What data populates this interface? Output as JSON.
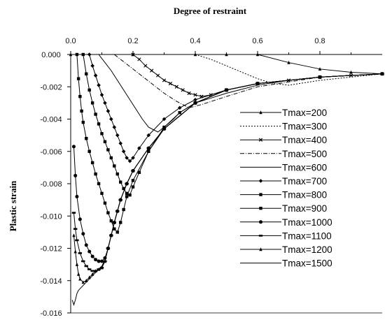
{
  "chart_data": {
    "type": "line",
    "title": "Degree of restraint",
    "xlabel": "Degree of restraint",
    "ylabel": "Plastic strain",
    "xlim": [
      0,
      1.0
    ],
    "ylim": [
      -0.016,
      0.0
    ],
    "x_axis_position": "top",
    "x_ticks": [
      "0.0",
      "0.2",
      "0.4",
      "0.6",
      "0.8"
    ],
    "y_ticks": [
      "0.000",
      "-0.002",
      "-0.004",
      "-0.006",
      "-0.008",
      "-0.010",
      "-0.012",
      "-0.014",
      "-0.016"
    ],
    "legend_position": "right",
    "grid": false,
    "series": [
      {
        "name": "Tmax=200",
        "marker": "tri",
        "dash": "",
        "x": [
          0.0,
          0.2,
          0.4,
          0.5,
          0.6,
          0.7,
          0.8,
          0.9,
          1.0
        ],
        "y": [
          0.0,
          0.0,
          0.0,
          0.0,
          0.0,
          -0.0005,
          -0.0009,
          -0.0011,
          -0.0012
        ]
      },
      {
        "name": "Tmax=300",
        "marker": "none",
        "dash": "2,2",
        "x": [
          0.4,
          0.45,
          0.5,
          0.55,
          0.6,
          0.65,
          0.7,
          0.8,
          0.9,
          1.0
        ],
        "y": [
          0.0,
          -0.0003,
          -0.0007,
          -0.0011,
          -0.0015,
          -0.0018,
          -0.0019,
          -0.0016,
          -0.0014,
          -0.0012
        ]
      },
      {
        "name": "Tmax=400",
        "marker": "x",
        "dash": "",
        "x": [
          0.2,
          0.22,
          0.24,
          0.26,
          0.28,
          0.3,
          0.32,
          0.34,
          0.36,
          0.38,
          0.4,
          0.42,
          0.45,
          0.5,
          0.6,
          0.7,
          0.8,
          0.9,
          1.0
        ],
        "y": [
          0.0,
          -0.0003,
          -0.0007,
          -0.001,
          -0.0013,
          -0.0016,
          -0.0018,
          -0.002,
          -0.0022,
          -0.0024,
          -0.0025,
          -0.0026,
          -0.0025,
          -0.0022,
          -0.0018,
          -0.0016,
          -0.0014,
          -0.0013,
          -0.0012
        ]
      },
      {
        "name": "Tmax=500",
        "marker": "none",
        "dash": "6,2,1,2",
        "x": [
          0.14,
          0.18,
          0.22,
          0.26,
          0.3,
          0.34,
          0.38,
          0.42,
          0.5,
          0.6,
          0.7,
          0.8,
          0.9,
          1.0
        ],
        "y": [
          0.0,
          -0.0006,
          -0.0012,
          -0.0018,
          -0.0024,
          -0.0029,
          -0.0033,
          -0.0031,
          -0.0026,
          -0.002,
          -0.0017,
          -0.0014,
          -0.0013,
          -0.0012
        ]
      },
      {
        "name": "Tmax=600",
        "marker": "none",
        "dash": "",
        "x": [
          0.09,
          0.11,
          0.13,
          0.15,
          0.17,
          0.19,
          0.21,
          0.23,
          0.25,
          0.28,
          0.3,
          0.33,
          0.35,
          0.4,
          0.45,
          0.5,
          0.6,
          0.7,
          0.8,
          0.9,
          1.0
        ],
        "y": [
          0.0,
          -0.0005,
          -0.001,
          -0.0016,
          -0.0022,
          -0.0028,
          -0.0034,
          -0.004,
          -0.0045,
          -0.0048,
          -0.0045,
          -0.004,
          -0.0036,
          -0.003,
          -0.0027,
          -0.0024,
          -0.0019,
          -0.0016,
          -0.0014,
          -0.0013,
          -0.0012
        ]
      },
      {
        "name": "Tmax=700",
        "marker": "diamond",
        "dash": "",
        "x": [
          0.06,
          0.07,
          0.08,
          0.09,
          0.1,
          0.11,
          0.12,
          0.13,
          0.14,
          0.15,
          0.16,
          0.17,
          0.18,
          0.19,
          0.2,
          0.22,
          0.25,
          0.3,
          0.35,
          0.4,
          0.5,
          0.6,
          0.8,
          1.0
        ],
        "y": [
          0.0,
          -0.0007,
          -0.0013,
          -0.0019,
          -0.0025,
          -0.003,
          -0.0035,
          -0.004,
          -0.0045,
          -0.005,
          -0.0055,
          -0.006,
          -0.0064,
          -0.0066,
          -0.0064,
          -0.0058,
          -0.005,
          -0.004,
          -0.0033,
          -0.0028,
          -0.0022,
          -0.0018,
          -0.0014,
          -0.0012
        ]
      },
      {
        "name": "Tmax=800",
        "marker": "square",
        "dash": "",
        "x": [
          0.04,
          0.05,
          0.06,
          0.07,
          0.08,
          0.09,
          0.1,
          0.11,
          0.12,
          0.13,
          0.14,
          0.15,
          0.16,
          0.17,
          0.18,
          0.19,
          0.2,
          0.22,
          0.25,
          0.3,
          0.35,
          0.4,
          0.5,
          0.6,
          0.8,
          1.0
        ],
        "y": [
          0.0,
          -0.0012,
          -0.0022,
          -0.003,
          -0.0037,
          -0.0043,
          -0.0049,
          -0.0054,
          -0.0059,
          -0.0064,
          -0.0069,
          -0.0074,
          -0.0079,
          -0.0083,
          -0.0086,
          -0.0087,
          -0.0082,
          -0.0073,
          -0.006,
          -0.0045,
          -0.0036,
          -0.003,
          -0.0022,
          -0.0018,
          -0.0014,
          -0.0012
        ]
      },
      {
        "name": "Tmax=900",
        "marker": "square",
        "dash": "",
        "x": [
          0.02,
          0.025,
          0.03,
          0.035,
          0.04,
          0.05,
          0.06,
          0.07,
          0.08,
          0.09,
          0.1,
          0.11,
          0.12,
          0.13,
          0.14,
          0.15,
          0.16,
          0.17,
          0.18,
          0.2,
          0.25,
          0.3,
          0.4,
          0.5,
          0.6,
          0.8,
          1.0
        ],
        "y": [
          0.0,
          -0.0015,
          -0.0026,
          -0.0035,
          -0.0042,
          -0.0052,
          -0.006,
          -0.0067,
          -0.0074,
          -0.008,
          -0.0086,
          -0.0092,
          -0.0098,
          -0.0103,
          -0.0108,
          -0.011,
          -0.0104,
          -0.0096,
          -0.0088,
          -0.0078,
          -0.006,
          -0.0046,
          -0.003,
          -0.0022,
          -0.0018,
          -0.0014,
          -0.0012
        ]
      },
      {
        "name": "Tmax=1000",
        "marker": "dot",
        "dash": "",
        "x": [
          0.01,
          0.015,
          0.02,
          0.03,
          0.04,
          0.05,
          0.06,
          0.07,
          0.08,
          0.09,
          0.1,
          0.11,
          0.12,
          0.13,
          0.14,
          0.15,
          0.16,
          0.18,
          0.2,
          0.25,
          0.3,
          0.4,
          0.5,
          0.6,
          0.8,
          1.0
        ],
        "y": [
          -0.0057,
          -0.0075,
          -0.0088,
          -0.0102,
          -0.0111,
          -0.0118,
          -0.0122,
          -0.0125,
          -0.0127,
          -0.0128,
          -0.0128,
          -0.0126,
          -0.012,
          -0.0112,
          -0.0104,
          -0.0097,
          -0.009,
          -0.008,
          -0.0072,
          -0.0058,
          -0.0046,
          -0.003,
          -0.0022,
          -0.0018,
          -0.0014,
          -0.0012
        ]
      },
      {
        "name": "Tmax=1100",
        "marker": "bar",
        "dash": "",
        "x": [
          0.01,
          0.015,
          0.02,
          0.03,
          0.04,
          0.05,
          0.06,
          0.07,
          0.08,
          0.09,
          0.1,
          0.11,
          0.12,
          0.13,
          0.14,
          0.15,
          0.16,
          0.18,
          0.2,
          0.25,
          0.3,
          0.4,
          0.5,
          0.6,
          0.8,
          1.0
        ],
        "y": [
          -0.0098,
          -0.0108,
          -0.0115,
          -0.0123,
          -0.0128,
          -0.0131,
          -0.0133,
          -0.0134,
          -0.0134,
          -0.0133,
          -0.0132,
          -0.0128,
          -0.012,
          -0.0112,
          -0.0104,
          -0.0097,
          -0.009,
          -0.008,
          -0.0072,
          -0.0058,
          -0.0046,
          -0.003,
          -0.0022,
          -0.0018,
          -0.0014,
          -0.0012
        ]
      },
      {
        "name": "Tmax=1200",
        "marker": "tri",
        "dash": "",
        "x": [
          0.01,
          0.015,
          0.02,
          0.025,
          0.03,
          0.04,
          0.05,
          0.06,
          0.07,
          0.08,
          0.09,
          0.1,
          0.11,
          0.12,
          0.13,
          0.14,
          0.15,
          0.16,
          0.18,
          0.2,
          0.25,
          0.3,
          0.4,
          0.5,
          0.6,
          0.8,
          1.0
        ],
        "y": [
          -0.0112,
          -0.0122,
          -0.013,
          -0.0136,
          -0.0139,
          -0.0141,
          -0.014,
          -0.0138,
          -0.0136,
          -0.0134,
          -0.0133,
          -0.0132,
          -0.0128,
          -0.012,
          -0.0112,
          -0.0104,
          -0.0097,
          -0.009,
          -0.008,
          -0.0072,
          -0.0058,
          -0.0046,
          -0.003,
          -0.0022,
          -0.0018,
          -0.0014,
          -0.0012
        ]
      },
      {
        "name": "Tmax=1500",
        "marker": "none",
        "dash": "",
        "x": [
          0.005,
          0.01,
          0.015,
          0.02,
          0.025,
          0.03,
          0.04,
          0.05,
          0.06,
          0.07,
          0.08,
          0.09,
          0.1,
          0.11,
          0.12,
          0.13,
          0.14,
          0.15,
          0.16,
          0.18,
          0.2,
          0.25,
          0.3,
          0.4,
          0.5,
          0.6,
          0.8,
          1.0
        ],
        "y": [
          -0.0152,
          -0.0155,
          -0.0152,
          -0.0148,
          -0.0146,
          -0.0145,
          -0.0143,
          -0.0141,
          -0.0139,
          -0.0137,
          -0.0135,
          -0.0133,
          -0.0131,
          -0.0127,
          -0.012,
          -0.0112,
          -0.0104,
          -0.0097,
          -0.009,
          -0.008,
          -0.0072,
          -0.0058,
          -0.0046,
          -0.003,
          -0.0022,
          -0.0018,
          -0.0014,
          -0.0012
        ]
      }
    ]
  }
}
